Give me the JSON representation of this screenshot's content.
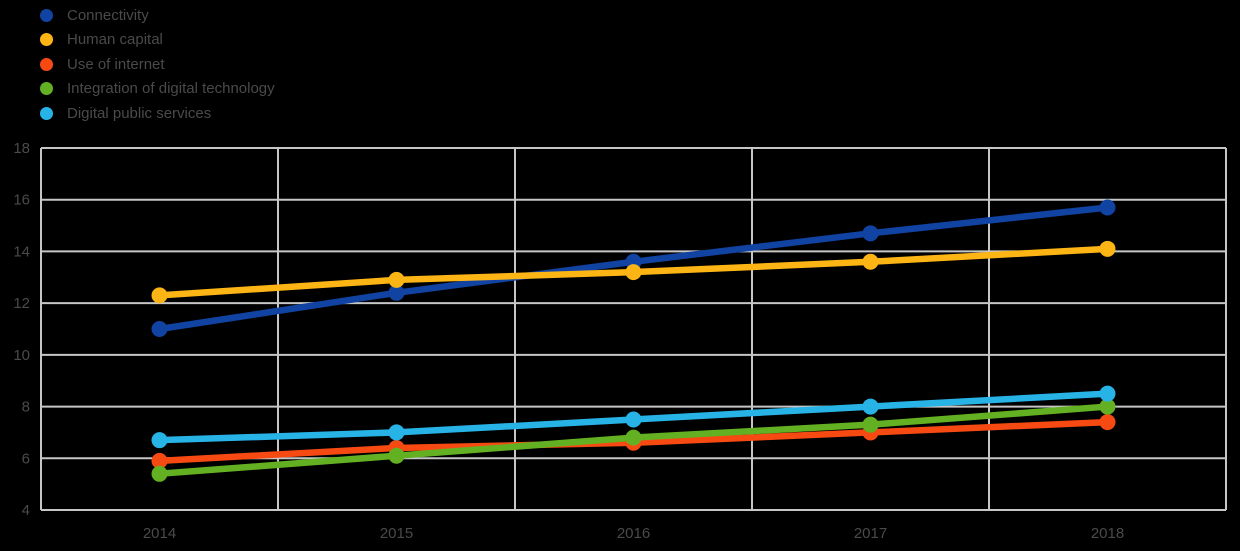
{
  "background_color": "#000000",
  "text_color": "#4a4a4a",
  "grid_color": "#c6c6c6",
  "chart_data": {
    "type": "line",
    "title": "",
    "xlabel": "",
    "ylabel": "",
    "categories": [
      "2014",
      "2015",
      "2016",
      "2017",
      "2018"
    ],
    "series": [
      {
        "name": "Connectivity",
        "color": "#1143a3",
        "values": [
          11.0,
          12.4,
          13.6,
          14.7,
          15.7
        ]
      },
      {
        "name": "Human capital",
        "color": "#fcb515",
        "values": [
          12.3,
          12.9,
          13.2,
          13.6,
          14.1
        ]
      },
      {
        "name": "Use of internet",
        "color": "#f64a12",
        "values": [
          5.9,
          6.4,
          6.6,
          7.0,
          7.4
        ]
      },
      {
        "name": "Integration of digital technology",
        "color": "#63b122",
        "values": [
          5.4,
          6.1,
          6.8,
          7.3,
          8.0
        ]
      },
      {
        "name": "Digital public services",
        "color": "#28b3e6",
        "values": [
          6.7,
          7.0,
          7.5,
          8.0,
          8.5
        ]
      }
    ],
    "ylim": [
      4,
      18
    ],
    "yticks": [
      4,
      6,
      8,
      10,
      12,
      14,
      16,
      18
    ],
    "grid": true,
    "marker": "circle",
    "legend_position": "top-left"
  }
}
